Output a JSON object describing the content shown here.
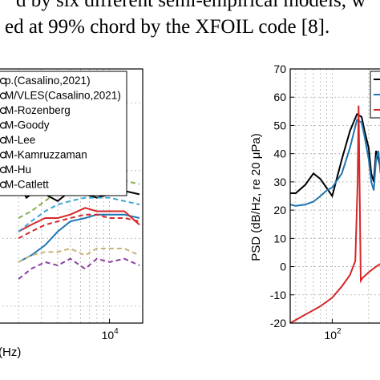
{
  "caption": {
    "line1": "d by six different semi-empirical models, w",
    "line2": "ed at 99% chord by the XFOIL code [8]."
  },
  "chart_data": [
    {
      "type": "line",
      "xscale": "log",
      "xlabel": "(Hz)",
      "x_ticks": [
        {
          "value": 10000,
          "base": "10",
          "exp": "4"
        }
      ],
      "grid": true,
      "legend_position": "top-left",
      "legend": [
        "p.(Casalino,2021)",
        "M/VLES(Casalino,2021)",
        "M-Rozenberg",
        "M-Goody",
        "M-Lee",
        "M-Kamruzzaman",
        "M-Hu",
        "M-Catlett"
      ],
      "series": [
        {
          "name": "p.(Casalino,2021)",
          "color": "#000000",
          "x": [
            2000,
            2300,
            2700,
            3200,
            4000,
            5000,
            6500,
            8000,
            10000,
            13000,
            17000
          ],
          "y": [
            36,
            32,
            34,
            33,
            31,
            34,
            33,
            32,
            33,
            34,
            33
          ]
        },
        {
          "name": "M/VLES(Casalino,2021)",
          "color": "#1f77b4",
          "x": [
            2000,
            2500,
            3200,
            4000,
            5000,
            6500,
            8000,
            10000,
            13000,
            17000
          ],
          "y": [
            13,
            15,
            18,
            22,
            25,
            26,
            27,
            27,
            27,
            26
          ]
        },
        {
          "name": "M-Rozenberg",
          "color": "#d62728",
          "x": [
            2000,
            2500,
            3200,
            4000,
            5000,
            6500,
            8000,
            10000,
            13000,
            17000
          ],
          "y": [
            22,
            24,
            26,
            26,
            27,
            29,
            28,
            28,
            28,
            24
          ]
        },
        {
          "name": "M-Goody",
          "color": "#7fb04b",
          "x": [
            2000,
            2500,
            3200,
            4000,
            5000,
            6500,
            8000,
            10000,
            13000,
            17000
          ],
          "y": [
            26,
            28,
            31,
            34,
            36,
            39,
            38,
            39,
            37,
            36
          ]
        },
        {
          "name": "M-Lee",
          "color": "#d62728",
          "x": [
            2000,
            2500,
            3200,
            4000,
            5000,
            6500,
            8000,
            10000,
            13000,
            17000
          ],
          "y": [
            20,
            22,
            24,
            25,
            26,
            27,
            27,
            26,
            26,
            25
          ]
        },
        {
          "name": "M-Kamruzzaman",
          "color": "#8b3fa0",
          "x": [
            2000,
            2500,
            3200,
            4000,
            5000,
            6500,
            8000,
            10000,
            13000,
            17000
          ],
          "y": [
            8,
            11,
            13,
            12,
            14,
            11,
            14,
            13,
            14,
            12
          ]
        },
        {
          "name": "M-Hu",
          "color": "#c8b478",
          "x": [
            2000,
            2500,
            3200,
            4000,
            5000,
            6500,
            8000,
            10000,
            13000,
            17000
          ],
          "y": [
            13,
            15,
            16,
            16,
            17,
            15,
            17,
            17,
            17,
            15
          ]
        },
        {
          "name": "M-Catlett",
          "color": "#3aa7d6",
          "x": [
            2000,
            2500,
            3200,
            4000,
            5000,
            6500,
            8000,
            10000,
            13000,
            17000
          ],
          "y": [
            22,
            25,
            28,
            30,
            31,
            32,
            32,
            32,
            31,
            30
          ]
        }
      ]
    },
    {
      "type": "line",
      "xscale": "log",
      "ylabel": "PSD (dB/Hz, re 20 μPa)",
      "ylim": [
        -20,
        70
      ],
      "y_ticks": [
        -20,
        -10,
        0,
        10,
        20,
        30,
        40,
        50,
        60,
        70
      ],
      "x_ticks": [
        {
          "value": 100,
          "base": "10",
          "exp": "2"
        }
      ],
      "grid": true,
      "legend_position": "top-right",
      "series": [
        {
          "color": "#000000",
          "x": [
            45,
            50,
            60,
            70,
            80,
            100,
            120,
            140,
            160,
            175,
            185,
            200,
            210,
            220,
            230,
            240,
            250
          ],
          "y": [
            26,
            26,
            29,
            33,
            31,
            25,
            38,
            48,
            54,
            53,
            48,
            42,
            33,
            30,
            41,
            38,
            35
          ]
        },
        {
          "color": "#1f77b4",
          "x": [
            45,
            50,
            60,
            70,
            80,
            90,
            100,
            120,
            140,
            160,
            175,
            185,
            200,
            210,
            220,
            230,
            240,
            250
          ],
          "y": [
            22,
            21.5,
            22,
            23,
            25,
            27,
            28,
            33,
            42,
            52,
            51,
            46,
            38,
            30,
            27,
            38,
            41,
            33
          ]
        },
        {
          "color": "#d62728",
          "x": [
            45,
            60,
            80,
            100,
            120,
            140,
            155,
            162,
            165,
            168,
            172,
            178,
            200,
            230,
            250
          ],
          "y": [
            -20,
            -17,
            -14,
            -11,
            -7,
            -3,
            2,
            30,
            57,
            30,
            -5,
            -4,
            -2,
            0,
            1
          ]
        }
      ]
    }
  ]
}
